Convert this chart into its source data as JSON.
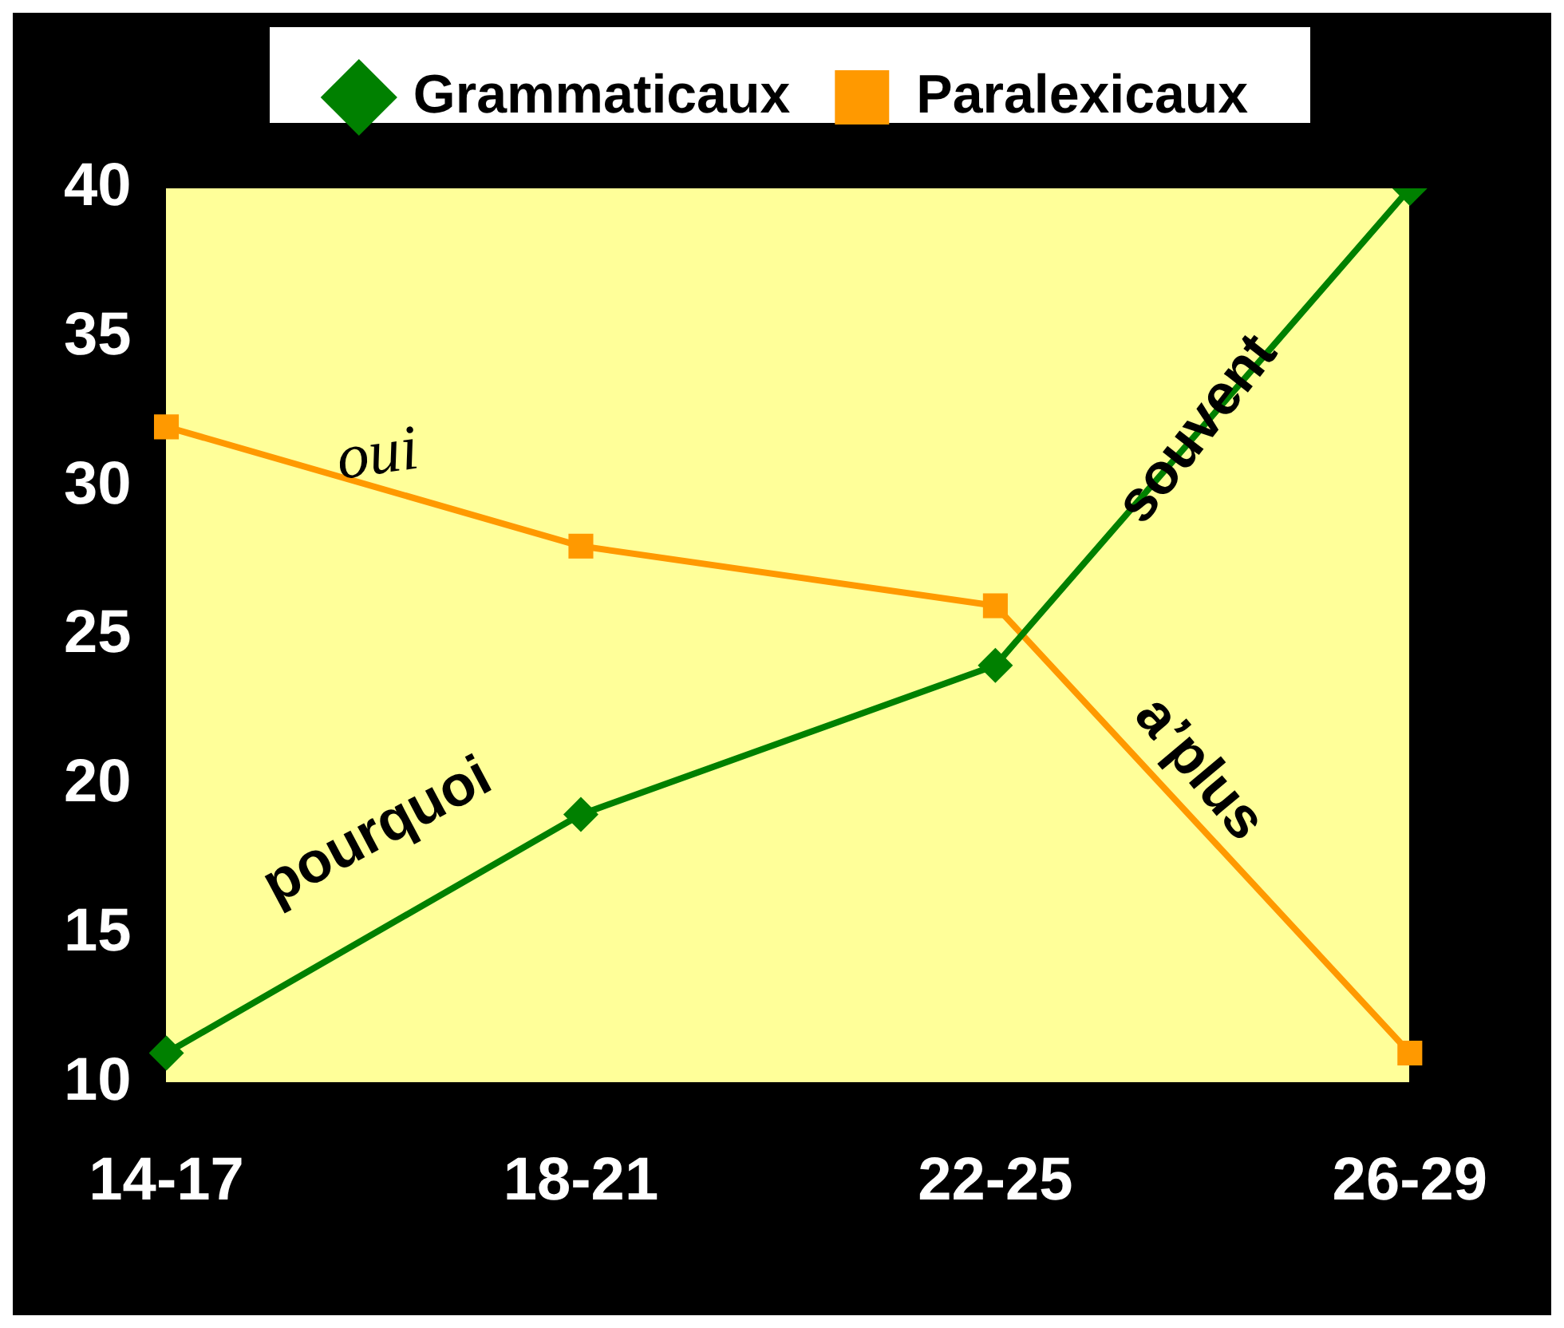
{
  "chart_data": {
    "type": "line",
    "categories": [
      "14-17",
      "18-21",
      "22-25",
      "26-29"
    ],
    "series": [
      {
        "name": "Grammaticaux",
        "color": "#008000",
        "marker": "diamond",
        "values": [
          11,
          19,
          24,
          40
        ]
      },
      {
        "name": "Paralexicaux",
        "color": "#ff9900",
        "marker": "square",
        "values": [
          32,
          28,
          26,
          11
        ]
      }
    ],
    "ylim": [
      10,
      40
    ],
    "yticks": [
      10,
      15,
      20,
      25,
      30,
      35,
      40
    ],
    "grid": false,
    "legend": "top",
    "line_style": "solid",
    "annotations": [
      "oui",
      "pourquoi",
      "souvent",
      "a’plus"
    ]
  }
}
